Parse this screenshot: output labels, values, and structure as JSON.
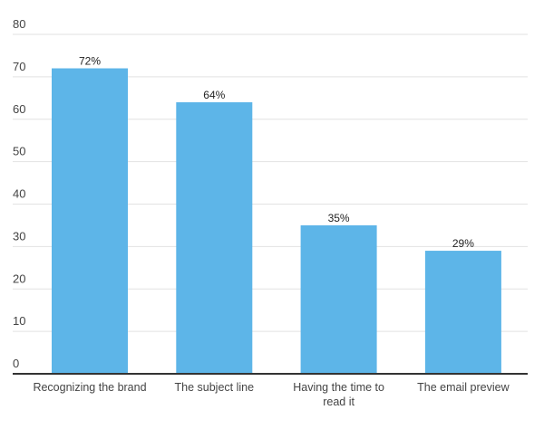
{
  "chart_data": {
    "type": "bar",
    "title": "",
    "xlabel": "",
    "ylabel": "",
    "categories": [
      "Recognizing the brand",
      "The subject line",
      "Having the time to read it",
      "The email preview"
    ],
    "category_lines": [
      [
        "Recognizing the brand"
      ],
      [
        "The subject line"
      ],
      [
        "Having the time to",
        "read it"
      ],
      [
        "The email preview"
      ]
    ],
    "values": [
      72,
      64,
      35,
      29
    ],
    "data_labels": [
      "72%",
      "64%",
      "35%",
      "29%"
    ],
    "ylim": [
      0,
      80
    ],
    "yticks": [
      0,
      10,
      20,
      30,
      40,
      50,
      60,
      70,
      80
    ],
    "ytick_labels": [
      "0",
      "10",
      "20",
      "30",
      "40",
      "50",
      "60",
      "70",
      "80"
    ],
    "grid": true,
    "colors": {
      "bar": "#5DB5E8",
      "grid": "#e2e2e2",
      "axis": "#333333",
      "text": "#444444"
    }
  }
}
